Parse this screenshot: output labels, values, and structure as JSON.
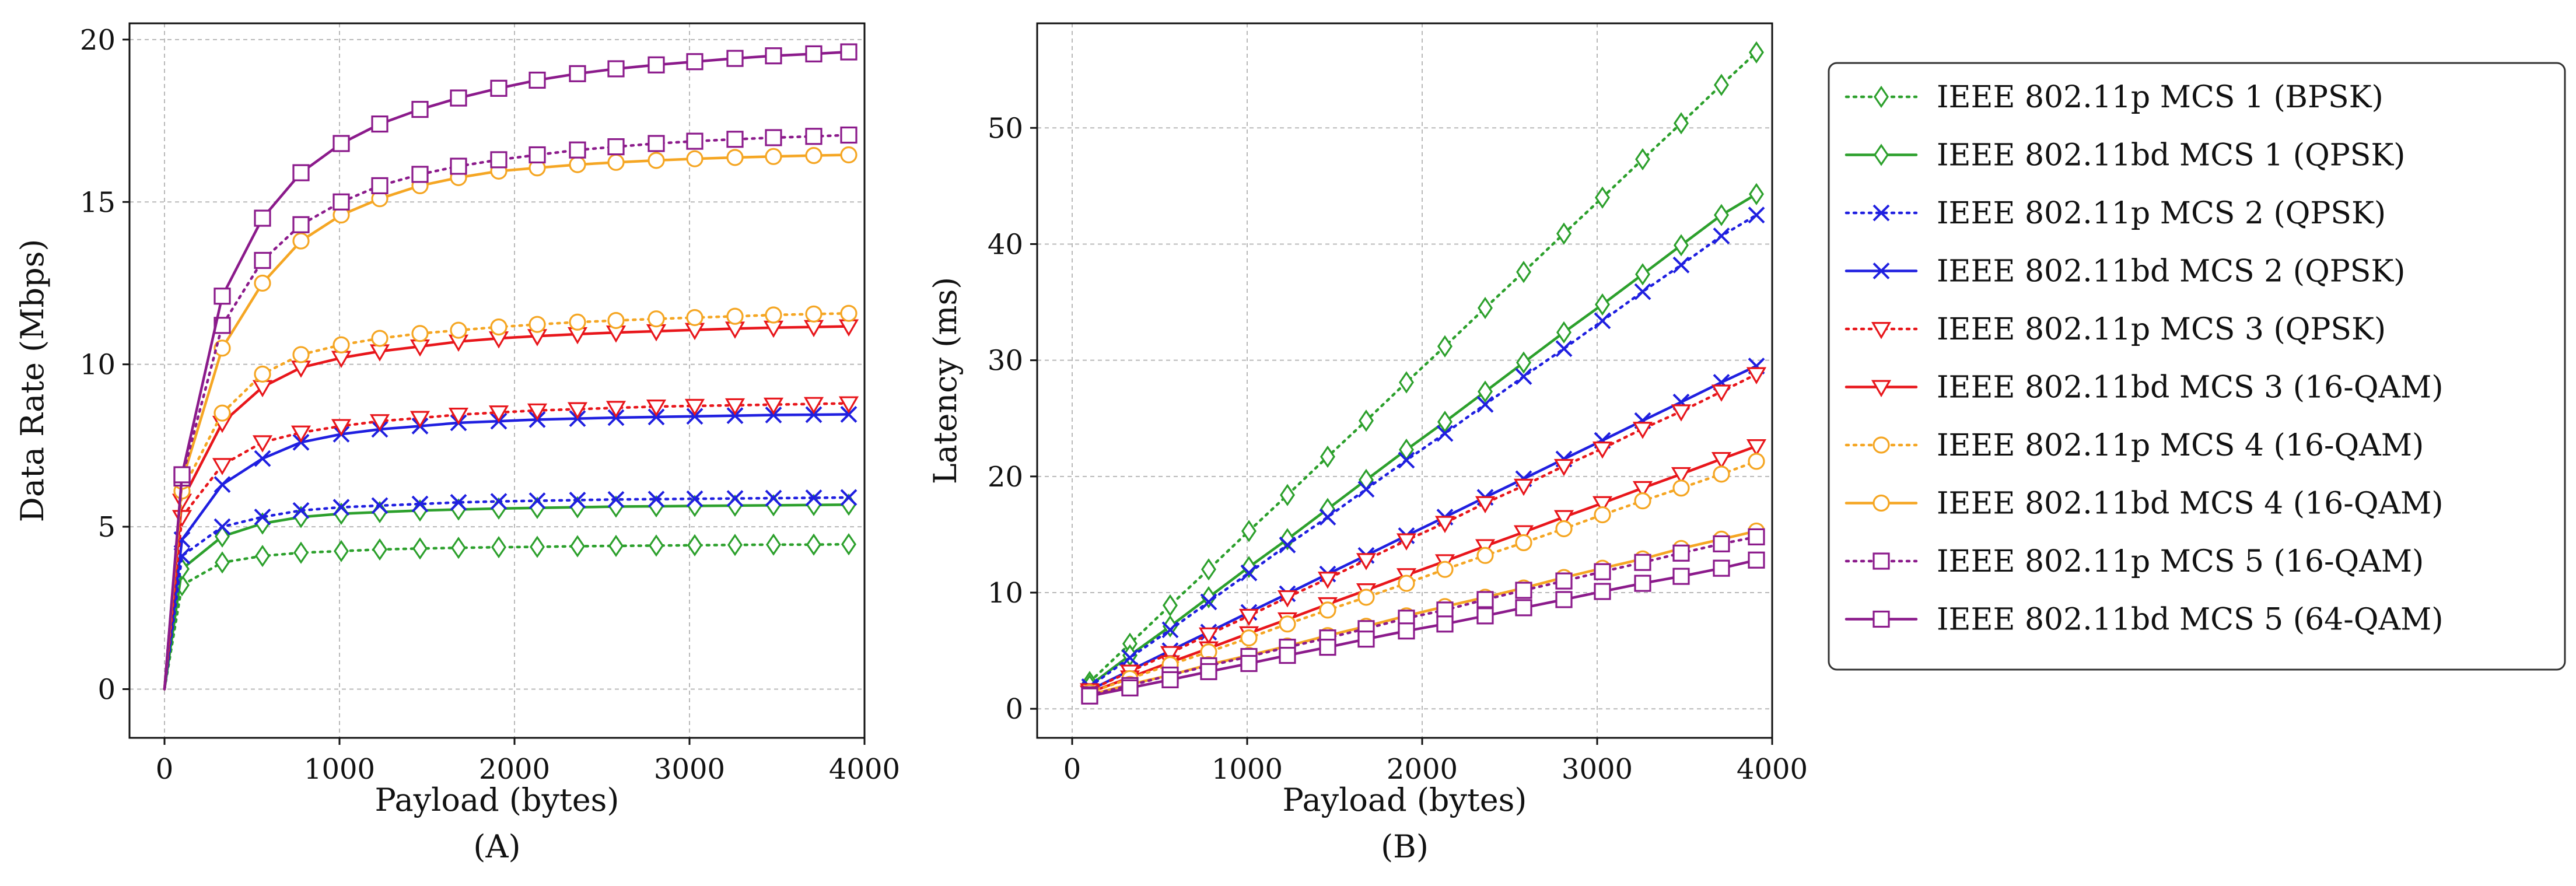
{
  "chart_data": [
    {
      "type": "line",
      "panel_label": "(A)",
      "xlabel": "Payload (bytes)",
      "ylabel": "Data Rate (Mbps)",
      "xlim": [
        -200,
        4000
      ],
      "ylim": [
        -1.5,
        20.5
      ],
      "xticks": [
        0,
        1000,
        2000,
        3000,
        4000
      ],
      "yticks": [
        0,
        5,
        10,
        15,
        20
      ],
      "grid": true,
      "x": [
        0,
        100,
        330,
        560,
        780,
        1010,
        1230,
        1460,
        1680,
        1910,
        2130,
        2360,
        2580,
        2810,
        3030,
        3260,
        3480,
        3710,
        3910
      ],
      "series": [
        {
          "name": "IEEE 802.11p MCS 1 (BPSK)",
          "color": "#2ca02c",
          "dash": "dotted",
          "marker": "diamond",
          "values": [
            0,
            3.2,
            3.9,
            4.1,
            4.2,
            4.25,
            4.3,
            4.33,
            4.35,
            4.37,
            4.38,
            4.4,
            4.41,
            4.42,
            4.43,
            4.44,
            4.45,
            4.45,
            4.46
          ]
        },
        {
          "name": "IEEE 802.11bd MCS 1 (QPSK)",
          "color": "#2ca02c",
          "dash": "solid",
          "marker": "diamond",
          "values": [
            0,
            3.7,
            4.7,
            5.1,
            5.3,
            5.4,
            5.45,
            5.5,
            5.53,
            5.56,
            5.58,
            5.6,
            5.62,
            5.63,
            5.64,
            5.65,
            5.66,
            5.67,
            5.68
          ]
        },
        {
          "name": "IEEE 802.11p MCS 2 (QPSK)",
          "color": "#1f1fe0",
          "dash": "dotted",
          "marker": "x",
          "values": [
            0,
            4.1,
            5.0,
            5.3,
            5.5,
            5.6,
            5.65,
            5.7,
            5.75,
            5.78,
            5.8,
            5.82,
            5.84,
            5.85,
            5.86,
            5.87,
            5.88,
            5.89,
            5.9
          ]
        },
        {
          "name": "IEEE 802.11bd MCS 2 (QPSK)",
          "color": "#1f1fe0",
          "dash": "solid",
          "marker": "x",
          "values": [
            0,
            4.6,
            6.3,
            7.1,
            7.6,
            7.85,
            8.0,
            8.1,
            8.2,
            8.25,
            8.3,
            8.33,
            8.36,
            8.38,
            8.4,
            8.42,
            8.44,
            8.45,
            8.46
          ]
        },
        {
          "name": "IEEE 802.11p MCS 3 (QPSK)",
          "color": "#e8161b",
          "dash": "dotted",
          "marker": "triangle",
          "values": [
            0,
            5.3,
            6.9,
            7.6,
            7.9,
            8.1,
            8.25,
            8.35,
            8.45,
            8.52,
            8.58,
            8.62,
            8.66,
            8.7,
            8.72,
            8.74,
            8.76,
            8.78,
            8.8
          ]
        },
        {
          "name": "IEEE 802.11bd MCS 3 (16-QAM)",
          "color": "#e8161b",
          "dash": "solid",
          "marker": "triangle",
          "values": [
            0,
            5.8,
            8.2,
            9.3,
            9.9,
            10.2,
            10.4,
            10.55,
            10.7,
            10.8,
            10.87,
            10.93,
            10.98,
            11.02,
            11.06,
            11.1,
            11.13,
            11.15,
            11.17
          ]
        },
        {
          "name": "IEEE 802.11p MCS 4 (16-QAM)",
          "color": "#f5a623",
          "dash": "dotted",
          "marker": "circle",
          "values": [
            0,
            6.1,
            8.5,
            9.7,
            10.3,
            10.6,
            10.8,
            10.95,
            11.05,
            11.15,
            11.23,
            11.3,
            11.35,
            11.4,
            11.44,
            11.48,
            11.52,
            11.55,
            11.57
          ]
        },
        {
          "name": "IEEE 802.11bd MCS 4 (16-QAM)",
          "color": "#f5a623",
          "dash": "solid",
          "marker": "circle",
          "values": [
            0,
            6.4,
            10.5,
            12.5,
            13.8,
            14.6,
            15.1,
            15.5,
            15.75,
            15.95,
            16.05,
            16.15,
            16.22,
            16.28,
            16.33,
            16.37,
            16.4,
            16.43,
            16.45
          ]
        },
        {
          "name": "IEEE 802.11p MCS 5 (16-QAM)",
          "color": "#8b1a8b",
          "dash": "dotted",
          "marker": "square",
          "values": [
            0,
            6.5,
            11.2,
            13.2,
            14.3,
            15.0,
            15.5,
            15.85,
            16.1,
            16.3,
            16.45,
            16.6,
            16.7,
            16.8,
            16.87,
            16.93,
            16.98,
            17.02,
            17.06
          ]
        },
        {
          "name": "IEEE 802.11bd MCS 5 (64-QAM)",
          "color": "#8b1a8b",
          "dash": "solid",
          "marker": "square",
          "values": [
            0,
            6.6,
            12.1,
            14.5,
            15.9,
            16.8,
            17.4,
            17.85,
            18.2,
            18.5,
            18.75,
            18.95,
            19.1,
            19.22,
            19.32,
            19.42,
            19.5,
            19.56,
            19.62
          ]
        }
      ]
    },
    {
      "type": "line",
      "panel_label": "(B)",
      "xlabel": "Payload (bytes)",
      "ylabel": "Latency (ms)",
      "xlim": [
        -200,
        4000
      ],
      "ylim": [
        -2.5,
        59
      ],
      "xticks": [
        0,
        1000,
        2000,
        3000,
        4000
      ],
      "yticks": [
        0,
        10,
        20,
        30,
        40,
        50
      ],
      "grid": true,
      "x": [
        100,
        330,
        560,
        780,
        1010,
        1230,
        1460,
        1680,
        1910,
        2130,
        2360,
        2580,
        2810,
        3030,
        3260,
        3480,
        3710,
        3910
      ],
      "series": [
        {
          "name": "IEEE 802.11p MCS 1 (BPSK)",
          "color": "#2ca02c",
          "dash": "dotted",
          "marker": "diamond",
          "values": [
            2.3,
            5.6,
            8.9,
            12.0,
            15.3,
            18.4,
            21.7,
            24.8,
            28.1,
            31.2,
            34.5,
            37.6,
            40.9,
            44.0,
            47.3,
            50.4,
            53.7,
            56.5
          ]
        },
        {
          "name": "IEEE 802.11bd MCS 1 (QPSK)",
          "color": "#2ca02c",
          "dash": "solid",
          "marker": "diamond",
          "values": [
            2.0,
            4.6,
            7.1,
            9.6,
            12.2,
            14.6,
            17.2,
            19.7,
            22.3,
            24.7,
            27.3,
            29.8,
            32.4,
            34.8,
            37.4,
            39.9,
            42.5,
            44.3
          ]
        },
        {
          "name": "IEEE 802.11p MCS 2 (QPSK)",
          "color": "#1f1fe0",
          "dash": "dotted",
          "marker": "x",
          "values": [
            1.9,
            4.4,
            6.8,
            9.2,
            11.7,
            14.1,
            16.5,
            18.9,
            21.4,
            23.7,
            26.2,
            28.6,
            31.0,
            33.4,
            35.9,
            38.2,
            40.7,
            42.5
          ]
        },
        {
          "name": "IEEE 802.11bd MCS 2 (QPSK)",
          "color": "#1f1fe0",
          "dash": "solid",
          "marker": "x",
          "values": [
            1.6,
            3.3,
            5.0,
            6.6,
            8.3,
            9.9,
            11.6,
            13.2,
            14.9,
            16.5,
            18.2,
            19.8,
            21.5,
            23.1,
            24.8,
            26.4,
            28.1,
            29.5
          ]
        },
        {
          "name": "IEEE 802.11p MCS 3 (QPSK)",
          "color": "#e8161b",
          "dash": "dotted",
          "marker": "triangle",
          "values": [
            1.6,
            3.2,
            4.8,
            6.4,
            8.0,
            9.6,
            11.2,
            12.8,
            14.5,
            16.0,
            17.7,
            19.2,
            20.9,
            22.4,
            24.1,
            25.6,
            27.3,
            28.8
          ]
        },
        {
          "name": "IEEE 802.11bd MCS 3 (16-QAM)",
          "color": "#e8161b",
          "dash": "solid",
          "marker": "triangle",
          "values": [
            1.4,
            2.7,
            4.0,
            5.2,
            6.5,
            7.7,
            9.0,
            10.2,
            11.5,
            12.7,
            14.0,
            15.2,
            16.5,
            17.7,
            19.0,
            20.2,
            21.5,
            22.6
          ]
        },
        {
          "name": "IEEE 802.11p MCS 4 (16-QAM)",
          "color": "#f5a623",
          "dash": "dotted",
          "marker": "circle",
          "values": [
            1.4,
            2.6,
            3.8,
            4.9,
            6.1,
            7.3,
            8.5,
            9.6,
            10.8,
            12.0,
            13.2,
            14.3,
            15.5,
            16.7,
            17.9,
            19.0,
            20.2,
            21.3
          ]
        },
        {
          "name": "IEEE 802.11bd MCS 4 (16-QAM)",
          "color": "#f5a623",
          "dash": "solid",
          "marker": "circle",
          "values": [
            1.2,
            2.1,
            2.9,
            3.8,
            4.6,
            5.4,
            6.3,
            7.1,
            8.0,
            8.8,
            9.6,
            10.4,
            11.3,
            12.1,
            12.9,
            13.8,
            14.6,
            15.3
          ]
        },
        {
          "name": "IEEE 802.11p MCS 5 (16-QAM)",
          "color": "#8b1a8b",
          "dash": "dotted",
          "marker": "square",
          "values": [
            1.2,
            2.0,
            2.9,
            3.7,
            4.5,
            5.3,
            6.1,
            6.9,
            7.8,
            8.5,
            9.4,
            10.2,
            11.0,
            11.8,
            12.6,
            13.4,
            14.2,
            14.8
          ]
        },
        {
          "name": "IEEE 802.11bd MCS 5 (64-QAM)",
          "color": "#8b1a8b",
          "dash": "solid",
          "marker": "square",
          "values": [
            1.1,
            1.8,
            2.5,
            3.2,
            3.9,
            4.6,
            5.3,
            6.0,
            6.7,
            7.3,
            8.0,
            8.7,
            9.4,
            10.1,
            10.8,
            11.4,
            12.1,
            12.8
          ]
        }
      ]
    }
  ]
}
